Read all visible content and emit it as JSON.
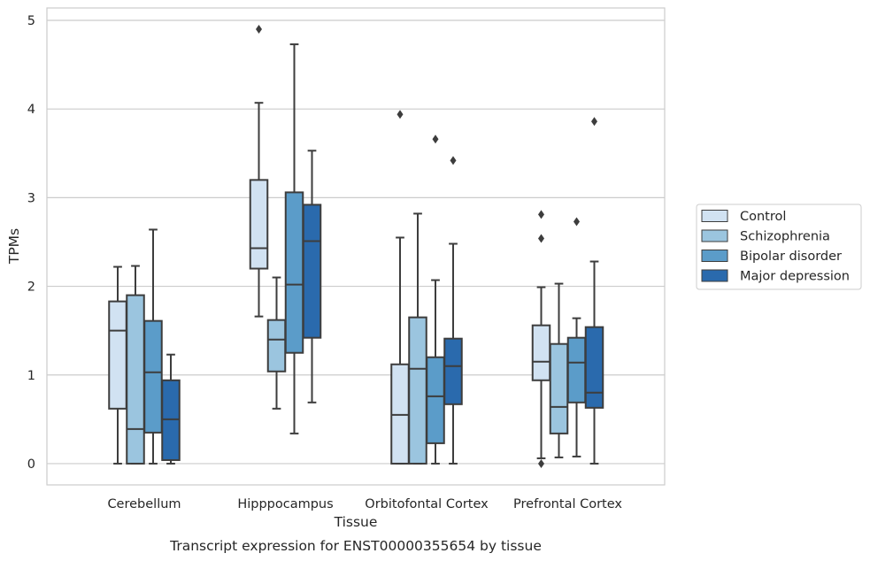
{
  "chart_data": {
    "type": "box",
    "xlabel": "Tissue",
    "ylabel": "TPMs",
    "caption": "Transcript expression for ENST00000355654 by tissue",
    "ylim": [
      -0.24,
      5.14
    ],
    "yticks": [
      0,
      1,
      2,
      3,
      4,
      5
    ],
    "grid": "horizontal",
    "legend_position": "right",
    "categories": [
      "Cerebellum",
      "Hipppocampus",
      "Orbitofontal Cortex",
      "Prefrontal Cortex"
    ],
    "series": [
      {
        "name": "Control",
        "color": "#d1e2f2",
        "boxes": [
          {
            "whislo": 0.0,
            "q1": 0.62,
            "med": 1.5,
            "q3": 1.83,
            "whishi": 2.22,
            "fliers": []
          },
          {
            "whislo": 1.66,
            "q1": 2.2,
            "med": 2.43,
            "q3": 3.2,
            "whishi": 4.07,
            "fliers": [
              4.9
            ]
          },
          {
            "whislo": 0.0,
            "q1": 0.0,
            "med": 0.55,
            "q3": 1.12,
            "whishi": 2.55,
            "fliers": [
              3.94
            ]
          },
          {
            "whislo": 0.06,
            "q1": 0.94,
            "med": 1.15,
            "q3": 1.56,
            "whishi": 1.99,
            "fliers": [
              0.0,
              2.54,
              2.81
            ]
          }
        ]
      },
      {
        "name": "Schizophrenia",
        "color": "#9bc5df",
        "boxes": [
          {
            "whislo": 0.0,
            "q1": 0.0,
            "med": 0.39,
            "q3": 1.9,
            "whishi": 2.23,
            "fliers": []
          },
          {
            "whislo": 0.62,
            "q1": 1.04,
            "med": 1.4,
            "q3": 1.62,
            "whishi": 2.1,
            "fliers": []
          },
          {
            "whislo": 0.0,
            "q1": 0.0,
            "med": 1.07,
            "q3": 1.65,
            "whishi": 2.82,
            "fliers": []
          },
          {
            "whislo": 0.07,
            "q1": 0.34,
            "med": 0.64,
            "q3": 1.35,
            "whishi": 2.03,
            "fliers": []
          }
        ]
      },
      {
        "name": "Bipolar disorder",
        "color": "#5b9cc9",
        "boxes": [
          {
            "whislo": 0.0,
            "q1": 0.35,
            "med": 1.03,
            "q3": 1.61,
            "whishi": 2.64,
            "fliers": []
          },
          {
            "whislo": 0.34,
            "q1": 1.25,
            "med": 2.02,
            "q3": 3.06,
            "whishi": 4.73,
            "fliers": []
          },
          {
            "whislo": 0.0,
            "q1": 0.23,
            "med": 0.76,
            "q3": 1.2,
            "whishi": 2.07,
            "fliers": [
              3.66
            ]
          },
          {
            "whislo": 0.08,
            "q1": 0.69,
            "med": 1.14,
            "q3": 1.42,
            "whishi": 1.64,
            "fliers": [
              2.73
            ]
          }
        ]
      },
      {
        "name": "Major depression",
        "color": "#2a6aad",
        "boxes": [
          {
            "whislo": 0.0,
            "q1": 0.04,
            "med": 0.5,
            "q3": 0.94,
            "whishi": 1.23,
            "fliers": []
          },
          {
            "whislo": 0.69,
            "q1": 1.42,
            "med": 2.51,
            "q3": 2.92,
            "whishi": 3.53,
            "fliers": []
          },
          {
            "whislo": 0.0,
            "q1": 0.67,
            "med": 1.1,
            "q3": 1.41,
            "whishi": 2.48,
            "fliers": [
              3.42
            ]
          },
          {
            "whislo": 0.0,
            "q1": 0.63,
            "med": 0.8,
            "q3": 1.54,
            "whishi": 2.28,
            "fliers": [
              3.86
            ]
          }
        ]
      }
    ]
  }
}
